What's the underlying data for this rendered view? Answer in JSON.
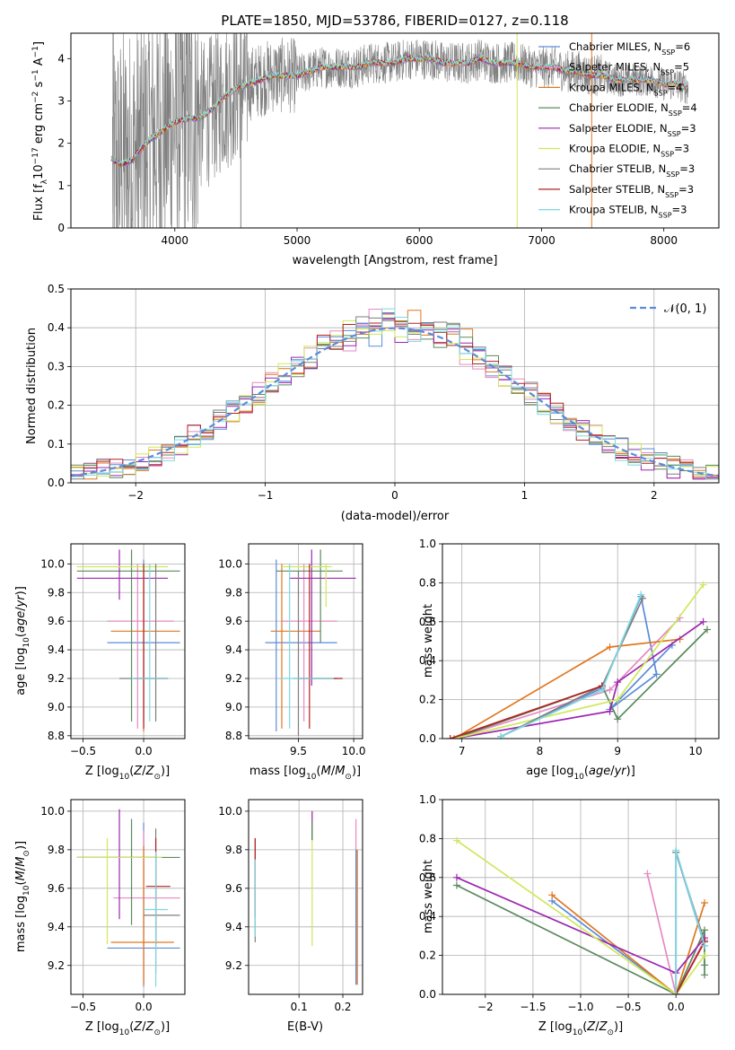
{
  "colors": {
    "blue": "#5b8bd9",
    "pink": "#e68ac4",
    "orange": "#e1771f",
    "green": "#5a8a5e",
    "purple": "#9b27b0",
    "yellowgreen": "#cfe85a",
    "gray": "#7f7f7f",
    "red": "#b22222",
    "cyan": "#7fd8e0"
  },
  "chart_data": [
    {
      "id": "spectrum",
      "type": "line",
      "title": "PLATE=1850, MJD=53786, FIBERID=0127, z=0.118",
      "xlabel": "wavelength [Angstrom, rest frame]",
      "ylabel": "Flux [fλ10⁻¹⁷ erg cm⁻² s⁻¹ A⁻¹]",
      "xlim": [
        3150,
        8450
      ],
      "ylim": [
        0,
        4.6
      ],
      "xticks": [
        4000,
        5000,
        6000,
        7000,
        8000
      ],
      "yticks": [
        0,
        1,
        2,
        3,
        4
      ],
      "legend_position": "top-right",
      "legend": [
        {
          "label": "Chabrier MILES, N",
          "sub": "SSP",
          "suffix": "=6",
          "color": "#5b8bd9"
        },
        {
          "label": "Salpeter MILES, N",
          "sub": "SSP",
          "suffix": "=5",
          "color": "#e68ac4"
        },
        {
          "label": "Kroupa MILES, N",
          "sub": "SSP",
          "suffix": "=4",
          "color": "#e1771f"
        },
        {
          "label": "Chabrier ELODIE, N",
          "sub": "SSP",
          "suffix": "=4",
          "color": "#5a8a5e"
        },
        {
          "label": "Salpeter ELODIE, N",
          "sub": "SSP",
          "suffix": "=3",
          "color": "#9b27b0"
        },
        {
          "label": "Kroupa ELODIE, N",
          "sub": "SSP",
          "suffix": "=3",
          "color": "#cfe85a"
        },
        {
          "label": "Chabrier STELIB, N",
          "sub": "SSP",
          "suffix": "=3",
          "color": "#7f7f7f"
        },
        {
          "label": "Salpeter STELIB, N",
          "sub": "SSP",
          "suffix": "=3",
          "color": "#b22222"
        },
        {
          "label": "Kroupa STELIB, N",
          "sub": "SSP",
          "suffix": "=3",
          "color": "#7fd8e0"
        }
      ],
      "continuum_x": [
        3450,
        3550,
        3650,
        3700,
        3800,
        3900,
        4000,
        4100,
        4200,
        4300,
        4400,
        4500,
        4600,
        4700,
        4800,
        4900,
        5000,
        5100,
        5200,
        5300,
        5400,
        5500,
        5600,
        5700,
        5800,
        5900,
        6000,
        6100,
        6200,
        6300,
        6400,
        6500,
        6600,
        6700,
        6800,
        6900,
        7000,
        7100,
        7200,
        7300,
        7400,
        7500,
        7600,
        7700,
        7800,
        7900,
        8000,
        8100,
        8200
      ],
      "continuum_y": [
        1.7,
        1.5,
        1.6,
        1.8,
        2.1,
        2.3,
        2.5,
        2.6,
        2.6,
        2.8,
        3.1,
        3.3,
        3.4,
        3.5,
        3.6,
        3.6,
        3.6,
        3.7,
        3.8,
        3.8,
        3.8,
        3.8,
        3.9,
        3.9,
        3.9,
        4.0,
        4.0,
        4.0,
        3.9,
        3.9,
        3.9,
        4.0,
        3.9,
        3.9,
        3.9,
        3.8,
        3.8,
        3.8,
        3.7,
        3.7,
        3.6,
        3.6,
        3.5,
        3.5,
        3.5,
        3.5,
        3.4,
        3.4,
        3.3
      ]
    },
    {
      "id": "residuals",
      "type": "histogram",
      "xlabel": "(data-model)/error",
      "ylabel": "Normed distribution",
      "xlim": [
        -2.5,
        2.5
      ],
      "ylim": [
        0,
        0.5
      ],
      "xticks": [
        -2,
        -1,
        0,
        1,
        2
      ],
      "yticks": [
        0.0,
        0.1,
        0.2,
        0.3,
        0.4,
        0.5
      ],
      "grid": true,
      "legend_position": "top-right",
      "reference_label": "𝒩(0, 1)",
      "bin_width": 0.1
    },
    {
      "id": "age-vs-z",
      "type": "errorbar",
      "xlabel": "Z [log₁₀(Z/Z⊙)]",
      "ylabel": "age  [log₁₀(age/yr)]",
      "xlim": [
        -0.6,
        0.34
      ],
      "ylim": [
        8.78,
        10.14
      ],
      "xticks": [
        -0.5,
        0.0
      ],
      "yticks": [
        8.8,
        9.0,
        9.2,
        9.4,
        9.6,
        9.8,
        10.0
      ],
      "grid": true,
      "points": [
        {
          "color": "blue",
          "x": 0.0,
          "xerr": [
            0.3,
            0.3
          ],
          "y": 9.45,
          "yerr": [
            0.55,
            0.58
          ]
        },
        {
          "color": "pink",
          "x": -0.05,
          "xerr": [
            0.25,
            0.3
          ],
          "y": 9.6,
          "yerr": [
            0.75,
            0.4
          ]
        },
        {
          "color": "orange",
          "x": 0.0,
          "xerr": [
            0.27,
            0.3
          ],
          "y": 9.53,
          "yerr": [
            0.7,
            0.47
          ]
        },
        {
          "color": "green",
          "x": -0.1,
          "xerr": [
            0.45,
            0.4
          ],
          "y": 9.95,
          "yerr": [
            1.05,
            0.15
          ]
        },
        {
          "color": "purple",
          "x": -0.2,
          "xerr": [
            0.35,
            0.4
          ],
          "y": 9.9,
          "yerr": [
            0.15,
            0.2
          ]
        },
        {
          "color": "yellowgreen",
          "x": 0.0,
          "xerr": [
            0.55,
            0.2
          ],
          "y": 9.98,
          "yerr": [
            0.25,
            0.02
          ]
        },
        {
          "color": "gray",
          "x": 0.1,
          "xerr": [
            0.3,
            0.1
          ],
          "y": 9.2,
          "yerr": [
            0.3,
            0.8
          ]
        },
        {
          "color": "red",
          "x": 0.0,
          "xerr": [
            0.08,
            0.2
          ],
          "y": 9.2,
          "yerr": [
            0.35,
            0.8
          ]
        },
        {
          "color": "cyan",
          "x": 0.05,
          "xerr": [
            0.15,
            0.15
          ],
          "y": 9.2,
          "yerr": [
            0.3,
            0.8
          ]
        }
      ]
    },
    {
      "id": "age-vs-mass",
      "type": "errorbar",
      "xlabel": "mass [log₁₀(M/M⊙)]",
      "ylabel": "",
      "xlim": [
        9.05,
        10.08
      ],
      "ylim": [
        8.78,
        10.14
      ],
      "xticks": [
        9.5,
        10.0
      ],
      "yticks": [
        8.8,
        9.0,
        9.2,
        9.4,
        9.6,
        9.8,
        10.0
      ],
      "grid": true,
      "points": [
        {
          "color": "blue",
          "x": 9.3,
          "xerr": [
            0.1,
            0.55
          ],
          "y": 9.45,
          "yerr": [
            0.62,
            0.58
          ]
        },
        {
          "color": "pink",
          "x": 9.55,
          "xerr": [
            0.2,
            0.3
          ],
          "y": 9.6,
          "yerr": [
            0.7,
            0.4
          ]
        },
        {
          "color": "orange",
          "x": 9.35,
          "xerr": [
            0.1,
            0.35
          ],
          "y": 9.53,
          "yerr": [
            0.68,
            0.47
          ]
        },
        {
          "color": "green",
          "x": 9.7,
          "xerr": [
            0.4,
            0.2
          ],
          "y": 9.95,
          "yerr": [
            0.5,
            0.15
          ]
        },
        {
          "color": "purple",
          "x": 9.62,
          "xerr": [
            0.2,
            0.4
          ],
          "y": 9.9,
          "yerr": [
            0.75,
            0.2
          ]
        },
        {
          "color": "yellowgreen",
          "x": 9.75,
          "xerr": [
            0.4,
            0.05
          ],
          "y": 9.98,
          "yerr": [
            0.28,
            0.02
          ]
        },
        {
          "color": "gray",
          "x": 9.5,
          "xerr": [
            0.05,
            0.35
          ],
          "y": 9.2,
          "yerr": [
            0.4,
            0.75
          ]
        },
        {
          "color": "red",
          "x": 9.6,
          "xerr": [
            0.1,
            0.3
          ],
          "y": 9.2,
          "yerr": [
            0.35,
            0.8
          ]
        },
        {
          "color": "cyan",
          "x": 9.42,
          "xerr": [
            0.1,
            0.4
          ],
          "y": 9.2,
          "yerr": [
            0.35,
            0.8
          ]
        }
      ]
    },
    {
      "id": "mass-weight-vs-age",
      "type": "line",
      "xlabel": "age  [log₁₀(age/yr)]",
      "ylabel": "mass weight",
      "xlim": [
        6.75,
        10.3
      ],
      "ylim": [
        0,
        1
      ],
      "xticks": [
        7,
        8,
        9,
        10
      ],
      "yticks": [
        0.0,
        0.2,
        0.4,
        0.6,
        0.8,
        1.0
      ],
      "grid": true,
      "series": [
        {
          "color": "blue",
          "x": [
            7.5,
            8.8,
            9.3,
            9.5,
            8.9,
            9.7
          ],
          "y": [
            0.01,
            0.26,
            0.73,
            0.33,
            0.15,
            0.48
          ]
        },
        {
          "color": "pink",
          "x": [
            6.9,
            8.9,
            9.0,
            9.8
          ],
          "y": [
            0.0,
            0.25,
            0.29,
            0.62
          ]
        },
        {
          "color": "orange",
          "x": [
            6.9,
            8.9,
            9.8
          ],
          "y": [
            0.0,
            0.47,
            0.51
          ]
        },
        {
          "color": "green",
          "x": [
            6.9,
            8.8,
            9.0,
            10.15
          ],
          "y": [
            0.0,
            0.27,
            0.1,
            0.56
          ]
        },
        {
          "color": "purple",
          "x": [
            6.9,
            8.9,
            9.0,
            10.1
          ],
          "y": [
            0.0,
            0.14,
            0.29,
            0.6
          ]
        },
        {
          "color": "yellowgreen",
          "x": [
            6.9,
            9.0,
            10.1
          ],
          "y": [
            0.0,
            0.2,
            0.79
          ]
        },
        {
          "color": "gray",
          "x": [
            7.5,
            8.8,
            9.32
          ],
          "y": [
            0.01,
            0.27,
            0.72
          ]
        },
        {
          "color": "red",
          "x": [
            6.85,
            8.8
          ],
          "y": [
            0.0,
            0.27
          ]
        },
        {
          "color": "cyan",
          "x": [
            7.5,
            8.8,
            9.3
          ],
          "y": [
            0.01,
            0.25,
            0.74
          ]
        }
      ]
    },
    {
      "id": "mass-vs-z",
      "type": "errorbar",
      "xlabel": "Z [log₁₀(Z/Z⊙)]",
      "ylabel": "mass [log₁₀(M/M⊙)]",
      "xlim": [
        -0.6,
        0.34
      ],
      "ylim": [
        9.05,
        10.06
      ],
      "xticks": [
        -0.5,
        0.0
      ],
      "yticks": [
        9.2,
        9.4,
        9.6,
        9.8,
        10.0
      ],
      "grid": true,
      "points": [
        {
          "color": "blue",
          "x": 0.0,
          "xerr": [
            0.3,
            0.3
          ],
          "y": 9.29,
          "yerr": [
            0.2,
            0.65
          ]
        },
        {
          "color": "pink",
          "x": 0.0,
          "xerr": [
            0.25,
            0.3
          ],
          "y": 9.55,
          "yerr": [
            0.45,
            0.35
          ]
        },
        {
          "color": "orange",
          "x": 0.0,
          "xerr": [
            0.27,
            0.25
          ],
          "y": 9.32,
          "yerr": [
            0.22,
            0.5
          ]
        },
        {
          "color": "green",
          "x": -0.1,
          "xerr": [
            0.45,
            0.4
          ],
          "y": 9.76,
          "yerr": [
            0.35,
            0.2
          ]
        },
        {
          "color": "purple",
          "x": -0.2,
          "xerr": [
            0.35,
            0.3
          ],
          "y": 9.76,
          "yerr": [
            0.32,
            0.25
          ]
        },
        {
          "color": "yellowgreen",
          "x": -0.3,
          "xerr": [
            0.25,
            0.45
          ],
          "y": 9.76,
          "yerr": [
            0.45,
            0.1
          ]
        },
        {
          "color": "gray",
          "x": 0.1,
          "xerr": [
            0.1,
            0.2
          ],
          "y": 9.46,
          "yerr": [
            0.3,
            0.45
          ]
        },
        {
          "color": "red",
          "x": 0.1,
          "xerr": [
            0.08,
            0.12
          ],
          "y": 9.61,
          "yerr": [
            0.3,
            0.25
          ]
        },
        {
          "color": "cyan",
          "x": 0.1,
          "xerr": [
            0.1,
            0.1
          ],
          "y": 9.49,
          "yerr": [
            0.4,
            0.3
          ]
        }
      ]
    },
    {
      "id": "mass-vs-ebv",
      "type": "errorbar",
      "xlabel": "E(B-V)",
      "ylabel": "",
      "xlim": [
        -0.015,
        0.245
      ],
      "ylim": [
        9.05,
        10.06
      ],
      "xticks": [
        0.1,
        0.2
      ],
      "yticks": [
        9.2,
        9.4,
        9.6,
        9.8,
        10.0
      ],
      "grid": true,
      "points": [
        {
          "color": "gray",
          "x": 0.0,
          "xerr": [
            0,
            0
          ],
          "y": 9.6,
          "yerr": [
            0.28,
            0.26
          ]
        },
        {
          "color": "red",
          "x": 0.0,
          "xerr": [
            0,
            0
          ],
          "y": 9.6,
          "yerr": [
            0.15,
            0.26
          ]
        },
        {
          "color": "cyan",
          "x": 0.0,
          "xerr": [
            0,
            0
          ],
          "y": 9.5,
          "yerr": [
            0.15,
            0.25
          ]
        },
        {
          "color": "yellowgreen",
          "x": 0.13,
          "xerr": [
            0,
            0
          ],
          "y": 9.7,
          "yerr": [
            0.4,
            0.3
          ]
        },
        {
          "color": "purple",
          "x": 0.13,
          "xerr": [
            0,
            0
          ],
          "y": 9.9,
          "yerr": [
            0.05,
            0.1
          ]
        },
        {
          "color": "green",
          "x": 0.13,
          "xerr": [
            0,
            0
          ],
          "y": 9.9,
          "yerr": [
            0.05,
            0.05
          ]
        },
        {
          "color": "pink",
          "x": 0.23,
          "xerr": [
            0,
            0
          ],
          "y": 9.6,
          "yerr": [
            0.5,
            0.36
          ]
        },
        {
          "color": "orange",
          "x": 0.233,
          "xerr": [
            0,
            0
          ],
          "y": 9.5,
          "yerr": [
            0.4,
            0.3
          ]
        },
        {
          "color": "blue",
          "x": 0.23,
          "xerr": [
            0,
            0
          ],
          "y": 9.5,
          "yerr": [
            0.4,
            0.3
          ]
        }
      ]
    },
    {
      "id": "mass-weight-vs-z",
      "type": "line",
      "xlabel": "Z [log₁₀(Z/Z⊙)]",
      "ylabel": "mass weight",
      "xlim": [
        -2.45,
        0.45
      ],
      "ylim": [
        0,
        1
      ],
      "xticks": [
        -2.0,
        -1.5,
        -1.0,
        -0.5,
        0.0
      ],
      "yticks": [
        0.0,
        0.2,
        0.4,
        0.6,
        0.8,
        1.0
      ],
      "grid": true,
      "series": [
        {
          "color": "blue",
          "x": [
            -1.3,
            0.0,
            0.0,
            0.3,
            0.3,
            0.3
          ],
          "y": [
            0.48,
            0.0,
            0.73,
            0.25,
            0.15,
            0.2
          ]
        },
        {
          "color": "pink",
          "x": [
            -0.3,
            0.0,
            0.3
          ],
          "y": [
            0.62,
            0.0,
            0.28
          ]
        },
        {
          "color": "orange",
          "x": [
            -1.3,
            0.0,
            0.3
          ],
          "y": [
            0.51,
            0.0,
            0.47
          ]
        },
        {
          "color": "green",
          "x": [
            -2.3,
            0.0,
            0.3,
            0.3,
            0.3
          ],
          "y": [
            0.56,
            0.0,
            0.33,
            0.1,
            0.15
          ]
        },
        {
          "color": "purple",
          "x": [
            -2.3,
            0.0,
            0.3
          ],
          "y": [
            0.6,
            0.11,
            0.29
          ]
        },
        {
          "color": "yellowgreen",
          "x": [
            -2.3,
            0.0,
            0.3
          ],
          "y": [
            0.79,
            0.0,
            0.2
          ]
        },
        {
          "color": "gray",
          "x": [
            0.0,
            0.0,
            0.3
          ],
          "y": [
            0.0,
            0.73,
            0.27
          ]
        },
        {
          "color": "red",
          "x": [
            0.0,
            0.3
          ],
          "y": [
            0.0,
            0.27
          ]
        },
        {
          "color": "cyan",
          "x": [
            0.0,
            0.0,
            0.3
          ],
          "y": [
            0.0,
            0.74,
            0.25
          ]
        }
      ]
    }
  ]
}
